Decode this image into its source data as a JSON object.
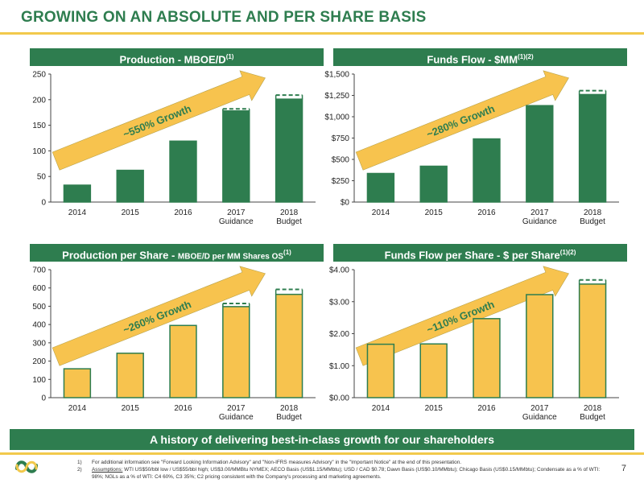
{
  "title": "GROWING ON AN ABSOLUTE AND PER SHARE BASIS",
  "tagline": "A history of delivering best-in-class growth for our shareholders",
  "page_number": "7",
  "footnotes": [
    {
      "num": "1)",
      "text": "For additional information see \"Forward Looking Information Advisory\" and \"Non-IFRS measures Advisory\" in the \"Important Notice\" at the end of this presentation."
    },
    {
      "num": "2)",
      "label": "Assumptions:",
      "text": " WTI US$50/bbl low / US$55/bbl high; US$3.00/MMBtu NYMEX; AECO Basis (US$1.15/MMbtu); USD / CAD $0.78; Dawn Basis (US$0.10/MMbtu); Chicago Basis (US$0.15/MMbtu); Condensate as a % of WTI: 98%; NGLs as a % of WTI: C4 60%, C3 35%; C2 pricing consistent with the Company's processing and marketing agreements."
    }
  ],
  "colors": {
    "green": "#2e7d4f",
    "gold": "#f2c94c",
    "accent_arrow": "#f7c34e"
  },
  "chart_data": [
    {
      "type": "bar",
      "title": "Production - MBOE/D",
      "title_sup": "(1)",
      "title_small": "",
      "categories": [
        [
          "2014"
        ],
        [
          "2015"
        ],
        [
          "2016"
        ],
        [
          "2017",
          "Guidance"
        ],
        [
          "2018",
          "Budget"
        ]
      ],
      "values": [
        33,
        62,
        119,
        178,
        201
      ],
      "range_high": [
        null,
        null,
        null,
        182,
        209
      ],
      "ylim": [
        0,
        250
      ],
      "yticks": [
        "0",
        "50",
        "100",
        "150",
        "200",
        "250"
      ],
      "bar_color": "#2e7d4f",
      "growth_label": "~550% Growth"
    },
    {
      "type": "bar",
      "title": "Funds Flow - $MM",
      "title_sup": "(1)(2)",
      "title_small": "",
      "categories": [
        [
          "2014"
        ],
        [
          "2015"
        ],
        [
          "2016"
        ],
        [
          "2017",
          "Guidance"
        ],
        [
          "2018",
          "Budget"
        ]
      ],
      "values": [
        335,
        420,
        740,
        1130,
        1260
      ],
      "range_high": [
        null,
        null,
        null,
        null,
        1305
      ],
      "ylim": [
        0,
        1500
      ],
      "yticks": [
        "$0",
        "$250",
        "$500",
        "$750",
        "$1,000",
        "$1,250",
        "$1,500"
      ],
      "bar_color": "#2e7d4f",
      "growth_label": "~280% Growth"
    },
    {
      "type": "bar",
      "title": "Production per Share - ",
      "title_sup": "(1)",
      "title_small": "MBOE/D per MM Shares OS",
      "categories": [
        [
          "2014"
        ],
        [
          "2015"
        ],
        [
          "2016"
        ],
        [
          "2017",
          "Guidance"
        ],
        [
          "2018",
          "Budget"
        ]
      ],
      "values": [
        158,
        243,
        395,
        498,
        565
      ],
      "range_high": [
        null,
        null,
        null,
        515,
        592
      ],
      "ylim": [
        0,
        700
      ],
      "yticks": [
        "0",
        "100",
        "200",
        "300",
        "400",
        "500",
        "600",
        "700"
      ],
      "bar_color": "#f7c34e",
      "growth_label": "~260% Growth"
    },
    {
      "type": "bar",
      "title": "Funds Flow per Share - $ per Share",
      "title_sup": "(1)(2)",
      "title_small": "",
      "categories": [
        [
          "2014"
        ],
        [
          "2015"
        ],
        [
          "2016"
        ],
        [
          "2017",
          "Guidance"
        ],
        [
          "2018",
          "Budget"
        ]
      ],
      "values": [
        1.67,
        1.68,
        2.47,
        3.22,
        3.55
      ],
      "range_high": [
        null,
        null,
        null,
        null,
        3.68
      ],
      "ylim": [
        0,
        4
      ],
      "yticks": [
        "$0.00",
        "$1.00",
        "$2.00",
        "$3.00",
        "$4.00"
      ],
      "bar_color": "#f7c34e",
      "growth_label": "~110% Growth"
    }
  ]
}
